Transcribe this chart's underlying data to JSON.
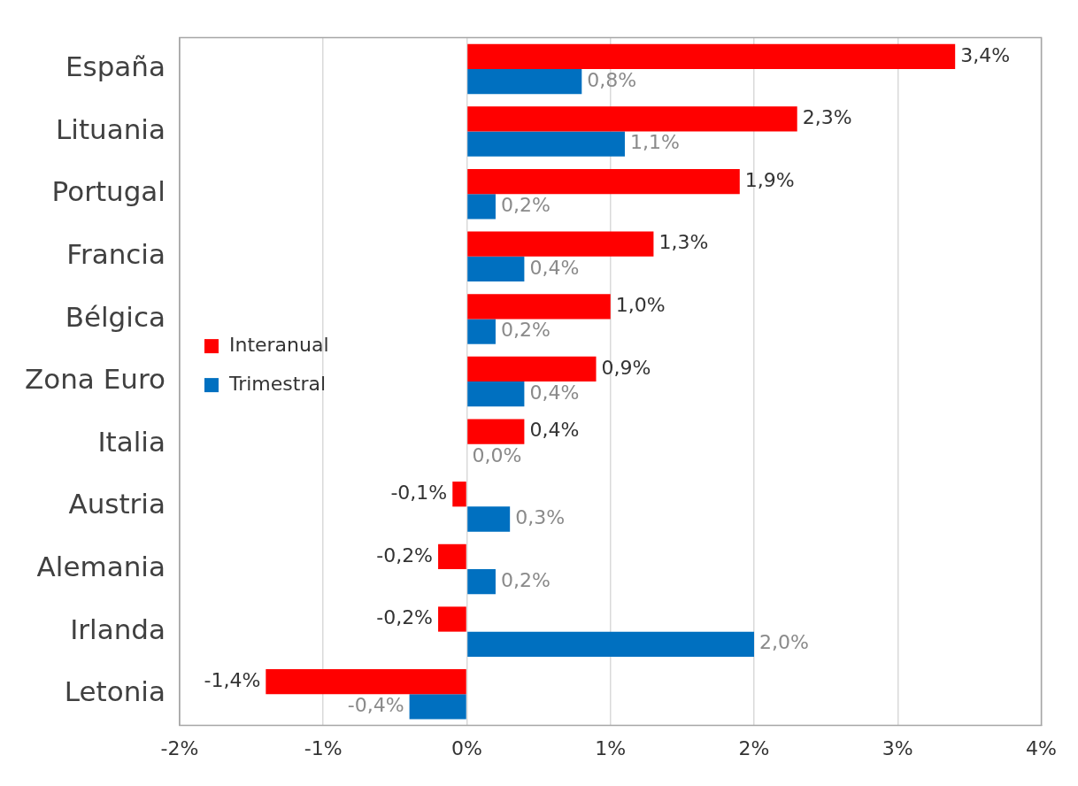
{
  "chart_data": {
    "type": "bar",
    "orientation": "horizontal",
    "categories": [
      "España",
      "Lituania",
      "Portugal",
      "Francia",
      "Bélgica",
      "Zona Euro",
      "Italia",
      "Austria",
      "Alemania",
      "Irlanda",
      "Letonia"
    ],
    "series": [
      {
        "name": "Interanual",
        "color": "#ff0000",
        "values": [
          3.4,
          2.3,
          1.9,
          1.3,
          1.0,
          0.9,
          0.4,
          -0.1,
          -0.2,
          -0.2,
          -1.4
        ],
        "value_labels": [
          "3,4%",
          "2,3%",
          "1,9%",
          "1,3%",
          "1,0%",
          "0,9%",
          "0,4%",
          "-0,1%",
          "-0,2%",
          "-0,2%",
          "-1,4%"
        ]
      },
      {
        "name": "Trimestral",
        "color": "#0070c0",
        "values": [
          0.8,
          1.1,
          0.2,
          0.4,
          0.2,
          0.4,
          0.0,
          0.3,
          0.2,
          2.0,
          -0.4
        ],
        "value_labels": [
          "0,8%",
          "1,1%",
          "0,2%",
          "0,4%",
          "0,2%",
          "0,4%",
          "0,0%",
          "0,3%",
          "0,2%",
          "2,0%",
          "-0,4%"
        ]
      }
    ],
    "xlim": [
      -2,
      4
    ],
    "xticks": [
      {
        "value": -2,
        "label": "-2%"
      },
      {
        "value": -1,
        "label": "-1%"
      },
      {
        "value": 0,
        "label": "0%"
      },
      {
        "value": 1,
        "label": "1%"
      },
      {
        "value": 2,
        "label": "2%"
      },
      {
        "value": 3,
        "label": "3%"
      },
      {
        "value": 4,
        "label": "4%"
      }
    ],
    "grid": "x",
    "legend": "left"
  }
}
